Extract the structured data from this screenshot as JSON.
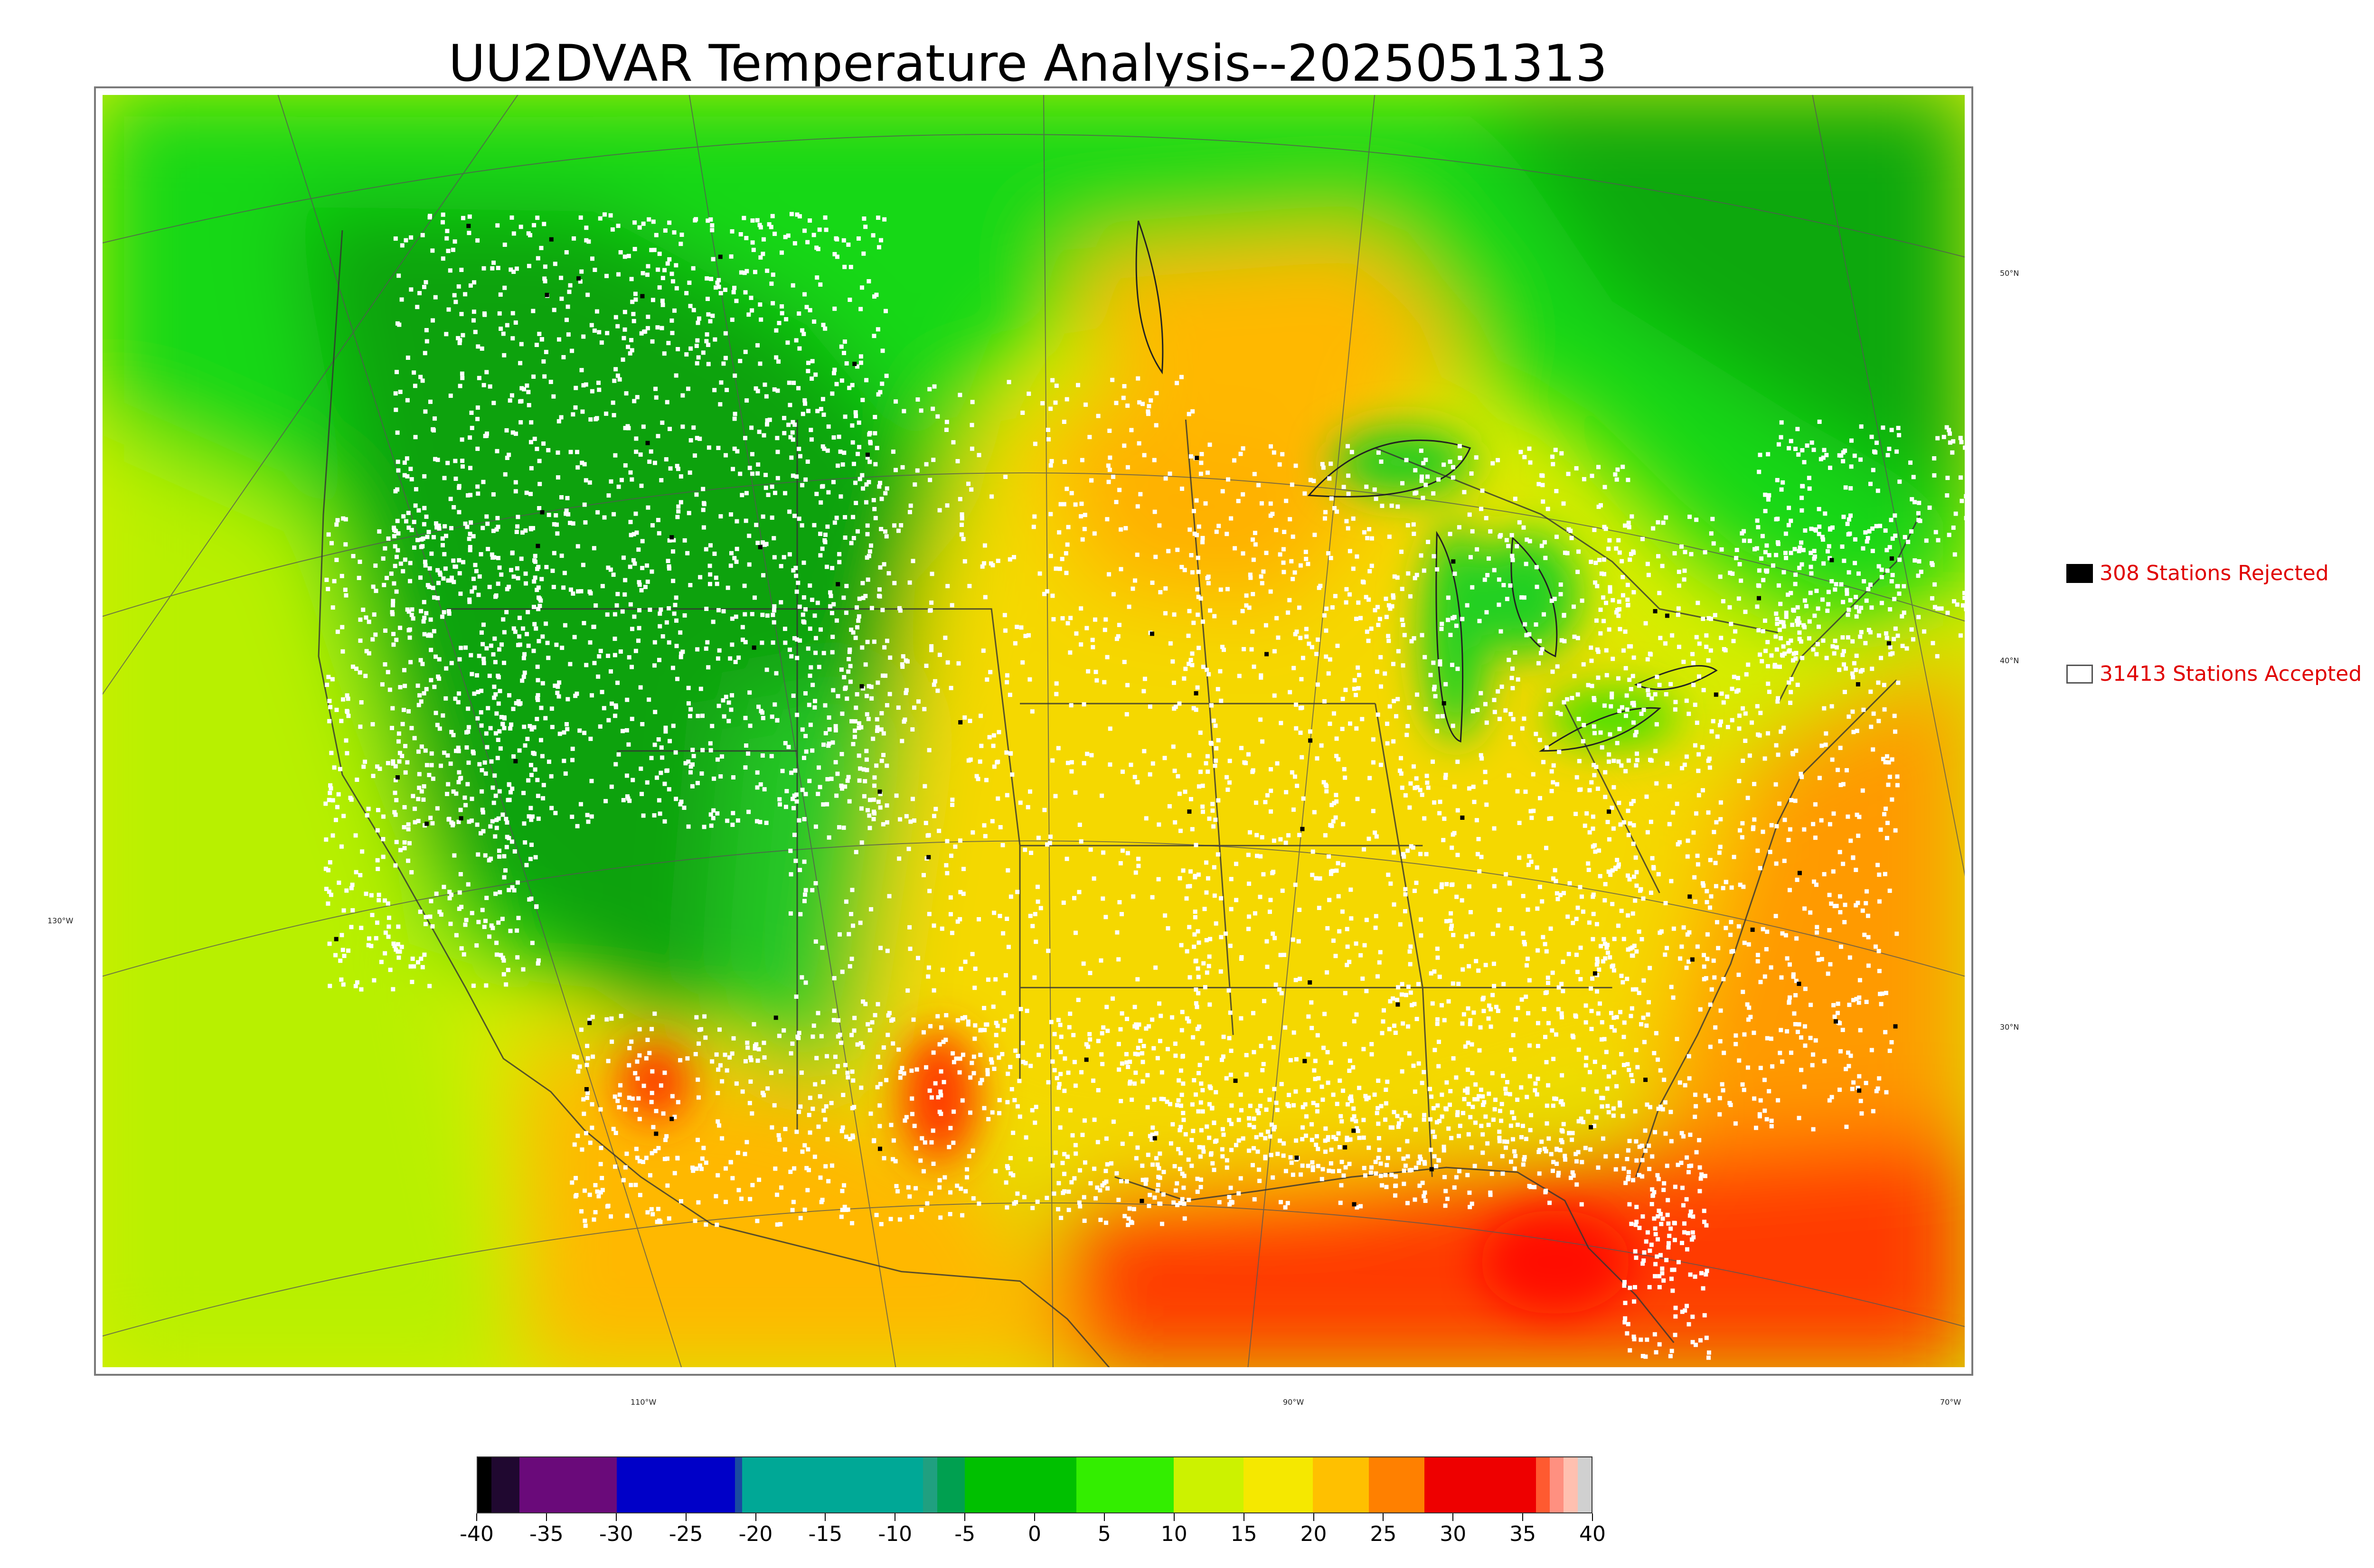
{
  "title": "UU2DVAR Temperature Analysis--2025051313",
  "map": {
    "latitude_labels": [
      "50°N",
      "40°N",
      "30°N"
    ],
    "longitude_labels": [
      "130°W",
      "110°W",
      "90°W",
      "70°W"
    ]
  },
  "legend": {
    "rejected": {
      "label": "308 Stations Rejected",
      "color": "#000000"
    },
    "accepted": {
      "label": "31413 Stations Accepted",
      "color": "#ffffff"
    }
  },
  "colorbar": {
    "min": -40,
    "max": 40,
    "tick_labels": [
      "-40",
      "-35",
      "-30",
      "-25",
      "-20",
      "-15",
      "-10",
      "-5",
      "0",
      "5",
      "10",
      "15",
      "20",
      "25",
      "30",
      "35",
      "40"
    ],
    "segments": [
      {
        "from": -40,
        "to": -39,
        "color": "#000000"
      },
      {
        "from": -39,
        "to": -37,
        "color": "#200830"
      },
      {
        "from": -37,
        "to": -30,
        "color": "#6a0a7a"
      },
      {
        "from": -30,
        "to": -21.5,
        "color": "#0000c8"
      },
      {
        "from": -21.5,
        "to": -21,
        "color": "#1a4aa0"
      },
      {
        "from": -21,
        "to": -8,
        "color": "#00a896"
      },
      {
        "from": -8,
        "to": -7,
        "color": "#20a080"
      },
      {
        "from": -7,
        "to": -5,
        "color": "#00a050"
      },
      {
        "from": -5,
        "to": 3,
        "color": "#00c000"
      },
      {
        "from": 3,
        "to": 10,
        "color": "#33ee00"
      },
      {
        "from": 10,
        "to": 15,
        "color": "#ccf200"
      },
      {
        "from": 15,
        "to": 20,
        "color": "#f5e800"
      },
      {
        "from": 20,
        "to": 24,
        "color": "#ffc000"
      },
      {
        "from": 24,
        "to": 28,
        "color": "#ff8000"
      },
      {
        "from": 28,
        "to": 36,
        "color": "#ee0000"
      },
      {
        "from": 36,
        "to": 37,
        "color": "#ff5a30"
      },
      {
        "from": 37,
        "to": 38,
        "color": "#ff9080"
      },
      {
        "from": 38,
        "to": 39,
        "color": "#ffc0b0"
      },
      {
        "from": 39,
        "to": 40,
        "color": "#d0d0d0"
      }
    ]
  },
  "colors": {
    "cold_green": "#10a010",
    "mid_green": "#20d020",
    "yellow_green": "#c8f000",
    "yellow": "#f0e000",
    "orange": "#ffa800",
    "red_orange": "#ff5a00",
    "red": "#ff2800",
    "station_accepted": "#ffffff",
    "station_rejected": "#000000"
  }
}
